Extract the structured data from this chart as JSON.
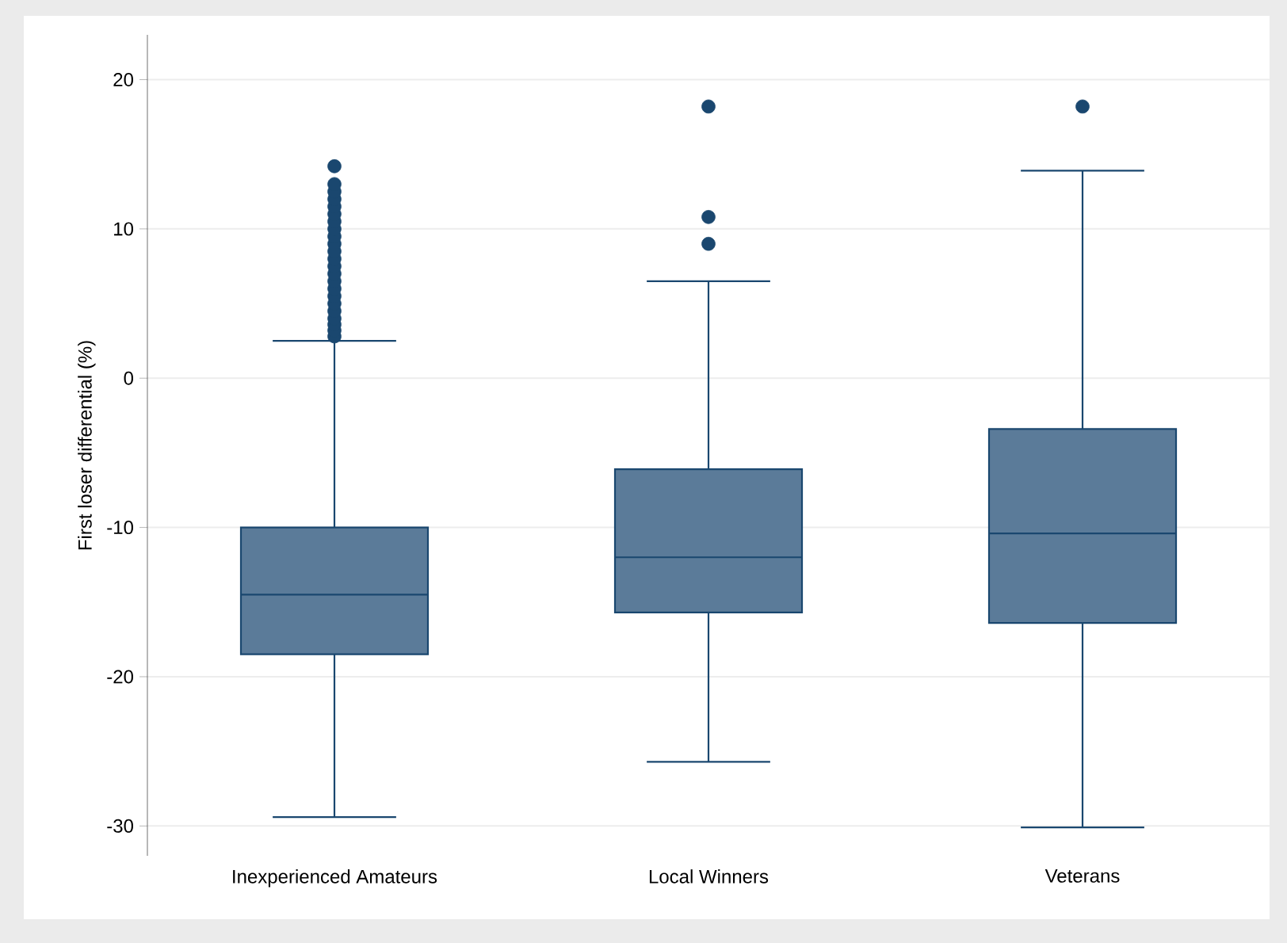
{
  "chart_data": {
    "type": "box",
    "ylabel": "First loser differential (%)",
    "categories": [
      "Inexperienced Amateurs",
      "Local Winners",
      "Veterans"
    ],
    "boxes": [
      {
        "low": -29.4,
        "q1": -18.5,
        "median": -14.5,
        "q3": -10.0,
        "high": 2.5,
        "outliers": [
          2.8,
          3.2,
          3.6,
          4.0,
          4.5,
          5.0,
          5.5,
          6.0,
          6.5,
          7.0,
          7.5,
          8.0,
          8.5,
          9.0,
          9.5,
          10.0,
          10.5,
          11.0,
          11.5,
          12.0,
          12.5,
          13.0,
          14.2
        ]
      },
      {
        "low": -25.7,
        "q1": -15.7,
        "median": -12.0,
        "q3": -6.1,
        "high": 6.5,
        "outliers": [
          9.0,
          10.8,
          18.2
        ]
      },
      {
        "low": -30.1,
        "q1": -16.4,
        "median": -10.4,
        "q3": -3.4,
        "high": 13.9,
        "outliers": [
          18.2
        ]
      }
    ],
    "color": "#5b7b99",
    "marker": "circle",
    "grid": "y",
    "ylim": [
      -32,
      23
    ],
    "yticks": [
      20,
      10,
      0,
      -10,
      -20,
      -30
    ]
  }
}
